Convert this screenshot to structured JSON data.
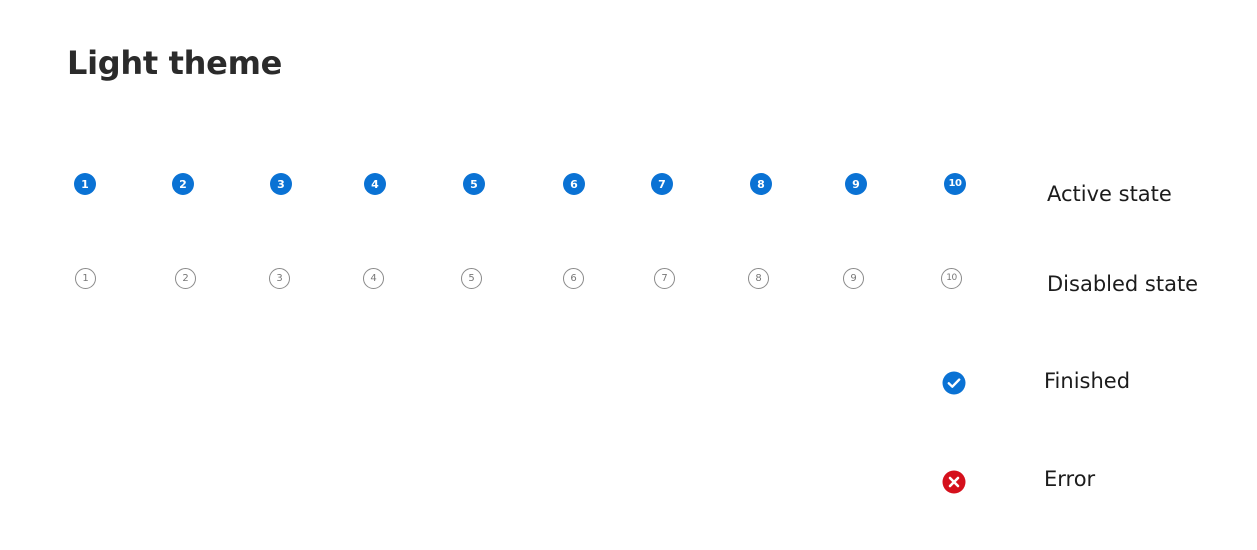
{
  "title": "Light theme",
  "active_row": {
    "label": "Active state",
    "numbers": [
      "1",
      "2",
      "3",
      "4",
      "5",
      "6",
      "7",
      "8",
      "9",
      "10"
    ],
    "color": "#0a72d4"
  },
  "disabled_row": {
    "label": "Disabled state",
    "numbers": [
      "1",
      "2",
      "3",
      "4",
      "5",
      "6",
      "7",
      "8",
      "9",
      "10"
    ],
    "color": "#8a8a8a"
  },
  "finished": {
    "label": "Finished",
    "icon": "checkmark-circle-icon",
    "color": "#0a72d4"
  },
  "error": {
    "label": "Error",
    "icon": "error-circle-icon",
    "color": "#d5101c"
  }
}
